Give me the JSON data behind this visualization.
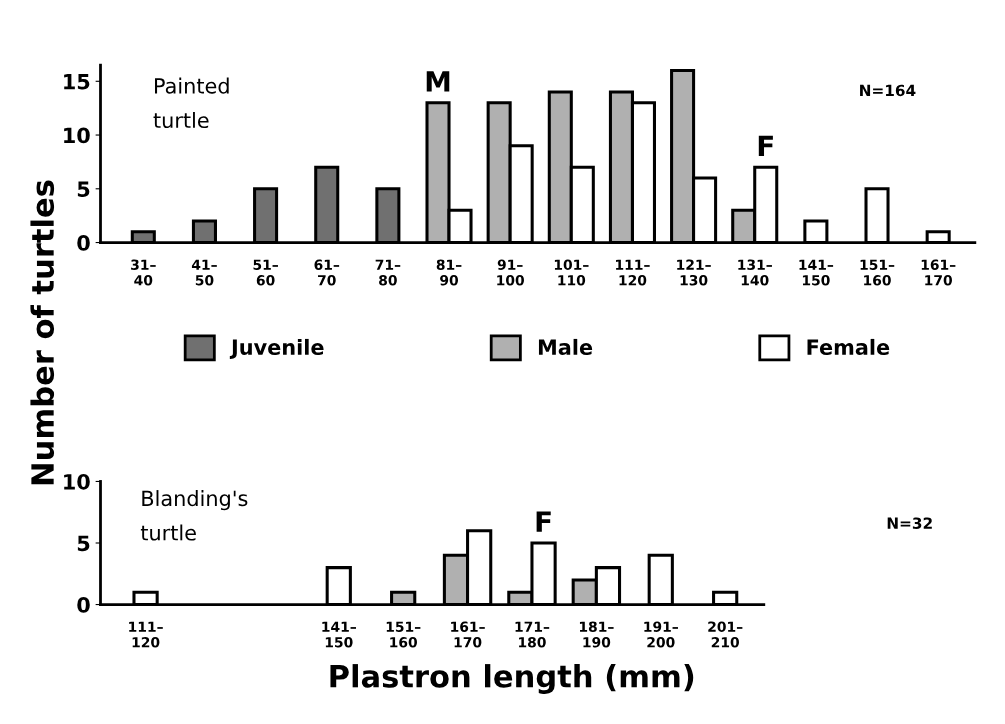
{
  "chart_data": [
    {
      "type": "bar",
      "title": "Painted\nturtle",
      "ylabel": "Number of turtles",
      "categories": [
        "31–\n40",
        "41–\n50",
        "51–\n60",
        "61–\n70",
        "71–\n80",
        "81–\n90",
        "91–\n100",
        "101–\n110",
        "111–\n120",
        "121–\n130",
        "131–\n140",
        "141–\n150",
        "151–\n160",
        "161–\n170"
      ],
      "series": [
        {
          "name": "Juvenile",
          "color": "#707070",
          "values": [
            1,
            2,
            5,
            7,
            5,
            null,
            null,
            null,
            null,
            null,
            null,
            null,
            null,
            null
          ]
        },
        {
          "name": "Male",
          "color": "#b0b0b0",
          "values": [
            null,
            null,
            null,
            null,
            null,
            13,
            13,
            14,
            14,
            16,
            3,
            null,
            null,
            null
          ]
        },
        {
          "name": "Female",
          "color": "#ffffff",
          "values": [
            null,
            null,
            null,
            null,
            null,
            3,
            9,
            7,
            13,
            6,
            7,
            2,
            5,
            1
          ]
        }
      ],
      "ylim": [
        0,
        16.5
      ],
      "yticks": [
        0,
        5,
        10,
        15
      ],
      "grid": false,
      "legend": "bottom",
      "annotations": [
        {
          "text": "M",
          "x": "81–\n90",
          "y": 13
        },
        {
          "text": "F",
          "x": "131–\n140",
          "y": 7
        },
        "N=164"
      ]
    },
    {
      "type": "bar",
      "title": "Blanding's\nturtle",
      "xlabel": "Plastron length (mm)",
      "categories": [
        "111–\n120",
        null,
        null,
        "141–\n150",
        "151–\n160",
        "161–\n170",
        "171–\n180",
        "181–\n190",
        "191–\n200",
        "201–\n210"
      ],
      "series": [
        {
          "color": "#b0b0b0",
          "values": [
            null,
            null,
            null,
            null,
            1,
            4,
            1,
            2,
            null,
            null
          ]
        },
        {
          "color": "#ffffff",
          "values": [
            1,
            null,
            null,
            3,
            null,
            6,
            5,
            3,
            4,
            1
          ]
        }
      ],
      "ylim": [
        0,
        10
      ],
      "yticks": [
        0,
        5,
        10
      ],
      "grid": false,
      "legend": false,
      "annotations": [
        {
          "text": "F",
          "x": "171–\n180",
          "y": 5
        },
        "N=32"
      ]
    }
  ]
}
